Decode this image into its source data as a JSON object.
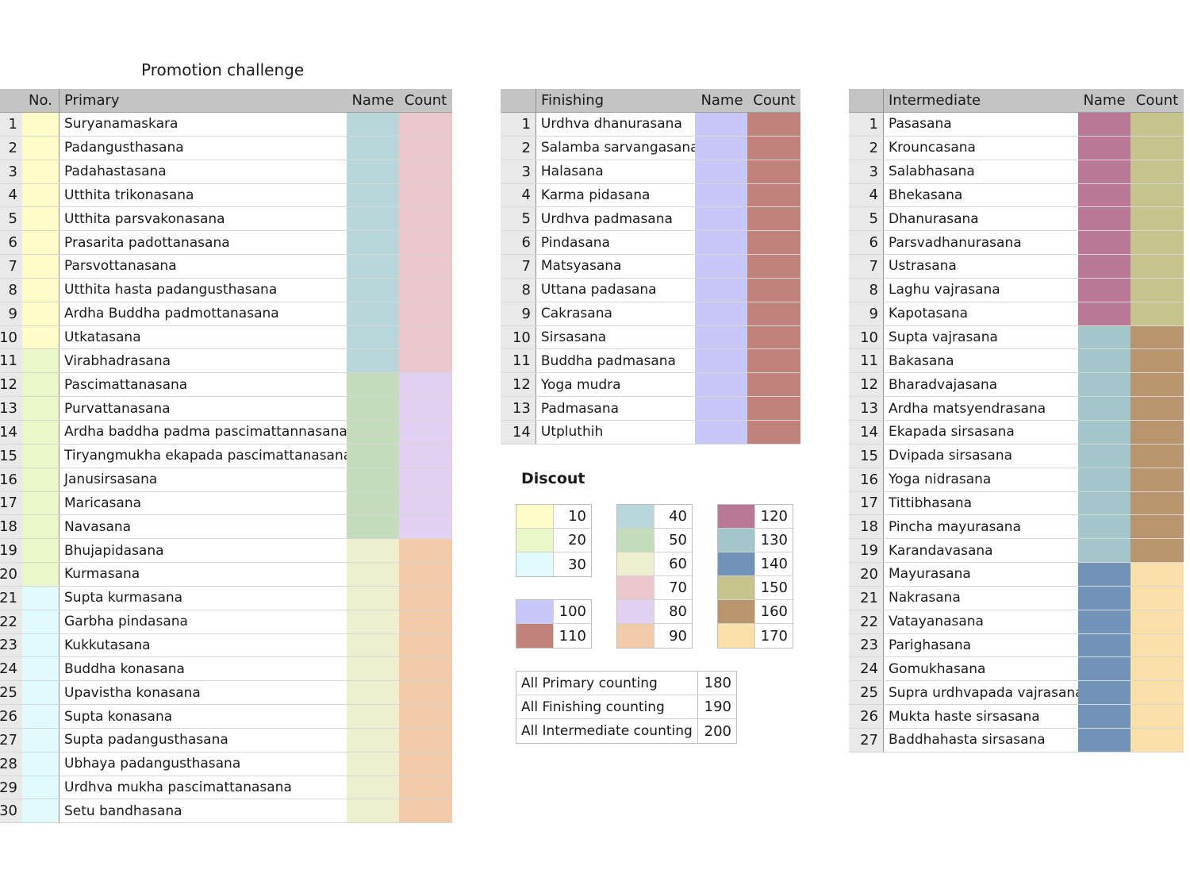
{
  "title": "Promotion challenge",
  "primary": {
    "headers": {
      "no": "No.",
      "name_col": "Primary",
      "name": "Name",
      "count": "Count"
    },
    "rows": [
      {
        "n": "1",
        "pose": "Suryanamaskara",
        "no_color": "#fefdc8",
        "name_color": "#b9d6da",
        "count_color": "#ebc8cc"
      },
      {
        "n": "2",
        "pose": "Padangusthasana",
        "no_color": "#fefdc8",
        "name_color": "#b9d6da",
        "count_color": "#ebc8cc"
      },
      {
        "n": "3",
        "pose": "Padahastasana",
        "no_color": "#fefdc8",
        "name_color": "#b9d6da",
        "count_color": "#ebc8cc"
      },
      {
        "n": "4",
        "pose": "Utthita trikonasana",
        "no_color": "#fefdc8",
        "name_color": "#b9d6da",
        "count_color": "#ebc8cc"
      },
      {
        "n": "5",
        "pose": "Utthita parsvakonasana",
        "no_color": "#fefdc8",
        "name_color": "#b9d6da",
        "count_color": "#ebc8cc"
      },
      {
        "n": "6",
        "pose": "Prasarita padottanasana",
        "no_color": "#fefdc8",
        "name_color": "#b9d6da",
        "count_color": "#ebc8cc"
      },
      {
        "n": "7",
        "pose": "Parsvottanasana",
        "no_color": "#fefdc8",
        "name_color": "#b9d6da",
        "count_color": "#ebc8cc"
      },
      {
        "n": "8",
        "pose": "Utthita hasta padangusthasana",
        "no_color": "#fefdc8",
        "name_color": "#b9d6da",
        "count_color": "#ebc8cc"
      },
      {
        "n": "9",
        "pose": "Ardha Buddha padmottanasana",
        "no_color": "#fefdc8",
        "name_color": "#b9d6da",
        "count_color": "#ebc8cc"
      },
      {
        "n": "10",
        "pose": "Utkatasana",
        "no_color": "#fefdc8",
        "name_color": "#b9d6da",
        "count_color": "#ebc8cc"
      },
      {
        "n": "11",
        "pose": "Virabhadrasana",
        "no_color": "#eaf7c8",
        "name_color": "#b9d6da",
        "count_color": "#ebc8cc"
      },
      {
        "n": "12",
        "pose": "Pascimattanasana",
        "no_color": "#eaf7c8",
        "name_color": "#c4dcbc",
        "count_color": "#e3d1f3"
      },
      {
        "n": "13",
        "pose": "Purvattanasana",
        "no_color": "#eaf7c8",
        "name_color": "#c4dcbc",
        "count_color": "#e3d1f3"
      },
      {
        "n": "14",
        "pose": "Ardha baddha padma pascimattannasana",
        "no_color": "#eaf7c8",
        "name_color": "#c4dcbc",
        "count_color": "#e3d1f3"
      },
      {
        "n": "15",
        "pose": "Tiryangmukha ekapada pascimattanasana",
        "no_color": "#eaf7c8",
        "name_color": "#c4dcbc",
        "count_color": "#e3d1f3"
      },
      {
        "n": "16",
        "pose": "Janusirsasana",
        "no_color": "#eaf7c8",
        "name_color": "#c4dcbc",
        "count_color": "#e3d1f3"
      },
      {
        "n": "17",
        "pose": "Maricasana",
        "no_color": "#eaf7c8",
        "name_color": "#c4dcbc",
        "count_color": "#e3d1f3"
      },
      {
        "n": "18",
        "pose": "Navasana",
        "no_color": "#eaf7c8",
        "name_color": "#c4dcbc",
        "count_color": "#e3d1f3"
      },
      {
        "n": "19",
        "pose": "Bhujapidasana",
        "no_color": "#eaf7c8",
        "name_color": "#eeefce",
        "count_color": "#f1cbaa"
      },
      {
        "n": "20",
        "pose": "Kurmasana",
        "no_color": "#eaf7c8",
        "name_color": "#eeefce",
        "count_color": "#f1cbaa"
      },
      {
        "n": "21",
        "pose": "Supta kurmasana",
        "no_color": "#e1fbfc",
        "name_color": "#eeefce",
        "count_color": "#f1cbaa"
      },
      {
        "n": "22",
        "pose": "Garbha pindasana",
        "no_color": "#e1fbfc",
        "name_color": "#eeefce",
        "count_color": "#f1cbaa"
      },
      {
        "n": "23",
        "pose": "Kukkutasana",
        "no_color": "#e1fbfc",
        "name_color": "#eeefce",
        "count_color": "#f1cbaa"
      },
      {
        "n": "24",
        "pose": "Buddha konasana",
        "no_color": "#e1fbfc",
        "name_color": "#eeefce",
        "count_color": "#f1cbaa"
      },
      {
        "n": "25",
        "pose": "Upavistha konasana",
        "no_color": "#e1fbfc",
        "name_color": "#eeefce",
        "count_color": "#f1cbaa"
      },
      {
        "n": "26",
        "pose": "Supta konasana",
        "no_color": "#e1fbfc",
        "name_color": "#eeefce",
        "count_color": "#f1cbaa"
      },
      {
        "n": "27",
        "pose": "Supta padangusthasana",
        "no_color": "#e1fbfc",
        "name_color": "#eeefce",
        "count_color": "#f1cbaa"
      },
      {
        "n": "28",
        "pose": "Ubhaya padangusthasana",
        "no_color": "#e1fbfc",
        "name_color": "#eeefce",
        "count_color": "#f1cbaa"
      },
      {
        "n": "29",
        "pose": "Urdhva mukha pascimattanasana",
        "no_color": "#e1fbfc",
        "name_color": "#eeefce",
        "count_color": "#f1cbaa"
      },
      {
        "n": "30",
        "pose": "Setu bandhasana",
        "no_color": "#e1fbfc",
        "name_color": "#eeefce",
        "count_color": "#f1cbaa"
      }
    ]
  },
  "finishing": {
    "headers": {
      "name_col": "Finishing",
      "name": "Name",
      "count": "Count"
    },
    "rows": [
      {
        "n": "1",
        "pose": "Urdhva dhanurasana",
        "name_color": "#c8c8f8",
        "count_color": "#c0837b"
      },
      {
        "n": "2",
        "pose": "Salamba sarvangasana",
        "name_color": "#c8c8f8",
        "count_color": "#c0837b"
      },
      {
        "n": "3",
        "pose": "Halasana",
        "name_color": "#c8c8f8",
        "count_color": "#c0837b"
      },
      {
        "n": "4",
        "pose": "Karma pidasana",
        "name_color": "#c8c8f8",
        "count_color": "#c0837b"
      },
      {
        "n": "5",
        "pose": "Urdhva padmasana",
        "name_color": "#c8c8f8",
        "count_color": "#c0837b"
      },
      {
        "n": "6",
        "pose": "Pindasana",
        "name_color": "#c8c8f8",
        "count_color": "#c0837b"
      },
      {
        "n": "7",
        "pose": "Matsyasana",
        "name_color": "#c8c8f8",
        "count_color": "#c0837b"
      },
      {
        "n": "8",
        "pose": "Uttana padasana",
        "name_color": "#c8c8f8",
        "count_color": "#c0837b"
      },
      {
        "n": "9",
        "pose": "Cakrasana",
        "name_color": "#c8c8f8",
        "count_color": "#c0837b"
      },
      {
        "n": "10",
        "pose": "Sirsasana",
        "name_color": "#c8c8f8",
        "count_color": "#c0837b"
      },
      {
        "n": "11",
        "pose": "Buddha padmasana",
        "name_color": "#c8c8f8",
        "count_color": "#c0837b"
      },
      {
        "n": "12",
        "pose": "Yoga mudra",
        "name_color": "#c8c8f8",
        "count_color": "#c0837b"
      },
      {
        "n": "13",
        "pose": "Padmasana",
        "name_color": "#c8c8f8",
        "count_color": "#c0837b"
      },
      {
        "n": "14",
        "pose": "Utpluthih",
        "name_color": "#c8c8f8",
        "count_color": "#c0837b"
      }
    ]
  },
  "intermediate": {
    "headers": {
      "name_col": "Intermediate",
      "name": "Name",
      "count": "Count"
    },
    "rows": [
      {
        "n": "1",
        "pose": "Pasasana",
        "name_color": "#b87896",
        "count_color": "#c6c38c"
      },
      {
        "n": "2",
        "pose": "Krouncasana",
        "name_color": "#b87896",
        "count_color": "#c6c38c"
      },
      {
        "n": "3",
        "pose": "Salabhasana",
        "name_color": "#b87896",
        "count_color": "#c6c38c"
      },
      {
        "n": "4",
        "pose": "Bhekasana",
        "name_color": "#b87896",
        "count_color": "#c6c38c"
      },
      {
        "n": "5",
        "pose": "Dhanurasana",
        "name_color": "#b87896",
        "count_color": "#c6c38c"
      },
      {
        "n": "6",
        "pose": "Parsvadhanurasana",
        "name_color": "#b87896",
        "count_color": "#c6c38c"
      },
      {
        "n": "7",
        "pose": "Ustrasana",
        "name_color": "#b87896",
        "count_color": "#c6c38c"
      },
      {
        "n": "8",
        "pose": "Laghu vajrasana",
        "name_color": "#b87896",
        "count_color": "#c6c38c"
      },
      {
        "n": "9",
        "pose": "Kapotasana",
        "name_color": "#b87896",
        "count_color": "#c6c38c"
      },
      {
        "n": "10",
        "pose": "Supta vajrasana",
        "name_color": "#a3c6ca",
        "count_color": "#b9956d"
      },
      {
        "n": "11",
        "pose": "Bakasana",
        "name_color": "#a3c6ca",
        "count_color": "#b9956d"
      },
      {
        "n": "12",
        "pose": "Bharadvajasana",
        "name_color": "#a3c6ca",
        "count_color": "#b9956d"
      },
      {
        "n": "13",
        "pose": "Ardha matsyendrasana",
        "name_color": "#a3c6ca",
        "count_color": "#b9956d"
      },
      {
        "n": "14",
        "pose": "Ekapada sirsasana",
        "name_color": "#a3c6ca",
        "count_color": "#b9956d"
      },
      {
        "n": "15",
        "pose": "Dvipada sirsasana",
        "name_color": "#a3c6ca",
        "count_color": "#b9956d"
      },
      {
        "n": "16",
        "pose": "Yoga nidrasana",
        "name_color": "#a3c6ca",
        "count_color": "#b9956d"
      },
      {
        "n": "17",
        "pose": "Tittibhasana",
        "name_color": "#a3c6ca",
        "count_color": "#b9956d"
      },
      {
        "n": "18",
        "pose": "Pincha mayurasana",
        "name_color": "#a3c6ca",
        "count_color": "#b9956d"
      },
      {
        "n": "19",
        "pose": "Karandavasana",
        "name_color": "#a3c6ca",
        "count_color": "#b9956d"
      },
      {
        "n": "20",
        "pose": "Mayurasana",
        "name_color": "#7392b8",
        "count_color": "#f9e0a8"
      },
      {
        "n": "21",
        "pose": "Nakrasana",
        "name_color": "#7392b8",
        "count_color": "#f9e0a8"
      },
      {
        "n": "22",
        "pose": "Vatayanasana",
        "name_color": "#7392b8",
        "count_color": "#f9e0a8"
      },
      {
        "n": "23",
        "pose": "Parighasana",
        "name_color": "#7392b8",
        "count_color": "#f9e0a8"
      },
      {
        "n": "24",
        "pose": "Gomukhasana",
        "name_color": "#7392b8",
        "count_color": "#f9e0a8"
      },
      {
        "n": "25",
        "pose": "Supra urdhvapada vajrasana",
        "name_color": "#7392b8",
        "count_color": "#f9e0a8"
      },
      {
        "n": "26",
        "pose": "Mukta haste sirsasana",
        "name_color": "#7392b8",
        "count_color": "#f9e0a8"
      },
      {
        "n": "27",
        "pose": "Baddhahasta sirsasana",
        "name_color": "#7392b8",
        "count_color": "#f9e0a8"
      }
    ]
  },
  "discount": {
    "title": "Discout",
    "groups": [
      {
        "items": [
          {
            "color": "#fefdc8",
            "value": "10"
          },
          {
            "color": "#eaf7c8",
            "value": "20"
          },
          {
            "color": "#e1fbfc",
            "value": "30"
          }
        ]
      },
      {
        "items": [
          {
            "color": "#c8c8f8",
            "value": "100"
          },
          {
            "color": "#c0837b",
            "value": "110"
          }
        ]
      },
      {
        "items": [
          {
            "color": "#b9d6da",
            "value": "40"
          },
          {
            "color": "#c4dcbc",
            "value": "50"
          },
          {
            "color": "#eeefce",
            "value": "60"
          },
          {
            "color": "#ebc8cc",
            "value": "70"
          },
          {
            "color": "#e3d1f3",
            "value": "80"
          },
          {
            "color": "#f1cbaa",
            "value": "90"
          }
        ]
      },
      {
        "items": [
          {
            "color": "#b87896",
            "value": "120"
          },
          {
            "color": "#a3c6ca",
            "value": "130"
          },
          {
            "color": "#7392b8",
            "value": "140"
          },
          {
            "color": "#c6c38c",
            "value": "150"
          },
          {
            "color": "#b9956d",
            "value": "160"
          },
          {
            "color": "#f9e0a8",
            "value": "170"
          }
        ]
      }
    ],
    "summary": [
      {
        "label": "All Primary counting",
        "value": "180"
      },
      {
        "label": "All Finishing counting",
        "value": "190"
      },
      {
        "label": "All Intermediate counting",
        "value": "200"
      }
    ]
  }
}
